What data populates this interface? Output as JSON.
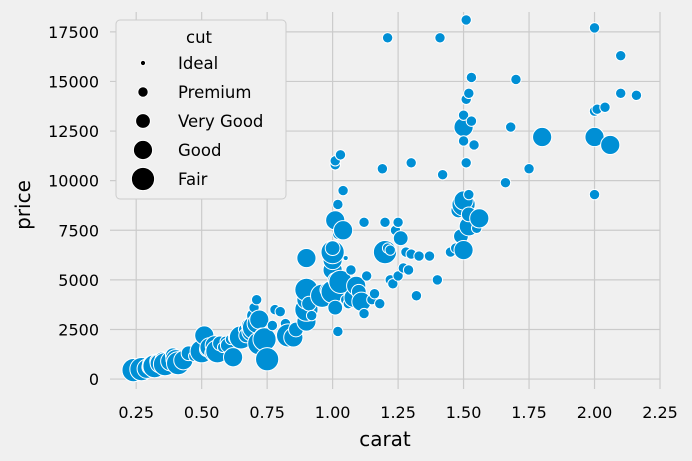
{
  "chart_data": {
    "type": "scatter",
    "title": "",
    "xlabel": "carat",
    "ylabel": "price",
    "xlim": [
      0.15,
      2.25
    ],
    "ylim": [
      -500,
      18500
    ],
    "x_ticks": [
      "0.25",
      "0.50",
      "0.75",
      "1.00",
      "1.25",
      "1.50",
      "1.75",
      "2.00",
      "2.25"
    ],
    "y_ticks": [
      "0",
      "2500",
      "5000",
      "7500",
      "10000",
      "12500",
      "15000",
      "17500"
    ],
    "grid": true,
    "marker_color": "#008fd5",
    "size_variable": "cut",
    "legend": {
      "title": "cut",
      "placement": "top-left",
      "entries": [
        "Ideal",
        "Premium",
        "Very Good",
        "Good",
        "Fair"
      ]
    },
    "points": [
      {
        "x": 0.24,
        "y": 450,
        "cut": "Fair"
      },
      {
        "x": 0.27,
        "y": 500,
        "cut": "Fair"
      },
      {
        "x": 0.29,
        "y": 520,
        "cut": "Good"
      },
      {
        "x": 0.3,
        "y": 600,
        "cut": "Very Good"
      },
      {
        "x": 0.31,
        "y": 700,
        "cut": "Good"
      },
      {
        "x": 0.32,
        "y": 650,
        "cut": "Fair"
      },
      {
        "x": 0.33,
        "y": 900,
        "cut": "Very Good"
      },
      {
        "x": 0.34,
        "y": 800,
        "cut": "Good"
      },
      {
        "x": 0.35,
        "y": 1000,
        "cut": "Very Good"
      },
      {
        "x": 0.36,
        "y": 750,
        "cut": "Fair"
      },
      {
        "x": 0.38,
        "y": 900,
        "cut": "Good"
      },
      {
        "x": 0.39,
        "y": 1200,
        "cut": "Very Good"
      },
      {
        "x": 0.4,
        "y": 1000,
        "cut": "Good"
      },
      {
        "x": 0.41,
        "y": 800,
        "cut": "Fair"
      },
      {
        "x": 0.42,
        "y": 1100,
        "cut": "Premium"
      },
      {
        "x": 0.43,
        "y": 950,
        "cut": "Good"
      },
      {
        "x": 0.45,
        "y": 1300,
        "cut": "Very Good"
      },
      {
        "x": 0.46,
        "y": 1200,
        "cut": "Ideal"
      },
      {
        "x": 0.47,
        "y": 1150,
        "cut": "Premium"
      },
      {
        "x": 0.5,
        "y": 1400,
        "cut": "Fair"
      },
      {
        "x": 0.51,
        "y": 2200,
        "cut": "Good"
      },
      {
        "x": 0.52,
        "y": 1500,
        "cut": "Very Good"
      },
      {
        "x": 0.53,
        "y": 1600,
        "cut": "Good"
      },
      {
        "x": 0.54,
        "y": 1300,
        "cut": "Very Good"
      },
      {
        "x": 0.55,
        "y": 1700,
        "cut": "Good"
      },
      {
        "x": 0.56,
        "y": 1400,
        "cut": "Fair"
      },
      {
        "x": 0.57,
        "y": 1800,
        "cut": "Very Good"
      },
      {
        "x": 0.58,
        "y": 1600,
        "cut": "Premium"
      },
      {
        "x": 0.59,
        "y": 1900,
        "cut": "Premium"
      },
      {
        "x": 0.6,
        "y": 1700,
        "cut": "Very Good"
      },
      {
        "x": 0.61,
        "y": 2000,
        "cut": "Premium"
      },
      {
        "x": 0.62,
        "y": 1100,
        "cut": "Good"
      },
      {
        "x": 0.63,
        "y": 2100,
        "cut": "Very Good"
      },
      {
        "x": 0.64,
        "y": 2300,
        "cut": "Premium"
      },
      {
        "x": 0.65,
        "y": 2100,
        "cut": "Fair"
      },
      {
        "x": 0.66,
        "y": 2500,
        "cut": "Premium"
      },
      {
        "x": 0.67,
        "y": 2200,
        "cut": "Very Good"
      },
      {
        "x": 0.68,
        "y": 2700,
        "cut": "Very Good"
      },
      {
        "x": 0.69,
        "y": 2400,
        "cut": "Good"
      },
      {
        "x": 0.7,
        "y": 2600,
        "cut": "Fair"
      },
      {
        "x": 0.7,
        "y": 3200,
        "cut": "Very Good"
      },
      {
        "x": 0.7,
        "y": 3600,
        "cut": "Premium"
      },
      {
        "x": 0.71,
        "y": 2800,
        "cut": "Good"
      },
      {
        "x": 0.71,
        "y": 4000,
        "cut": "Premium"
      },
      {
        "x": 0.72,
        "y": 3000,
        "cut": "Good"
      },
      {
        "x": 0.72,
        "y": 1800,
        "cut": "Fair"
      },
      {
        "x": 0.73,
        "y": 2200,
        "cut": "Very Good"
      },
      {
        "x": 0.74,
        "y": 2000,
        "cut": "Fair"
      },
      {
        "x": 0.75,
        "y": 1000,
        "cut": "Fair"
      },
      {
        "x": 0.77,
        "y": 2700,
        "cut": "Premium"
      },
      {
        "x": 0.78,
        "y": 3500,
        "cut": "Premium"
      },
      {
        "x": 0.8,
        "y": 3400,
        "cut": "Premium"
      },
      {
        "x": 0.82,
        "y": 2800,
        "cut": "Premium"
      },
      {
        "x": 0.83,
        "y": 2200,
        "cut": "Fair"
      },
      {
        "x": 0.85,
        "y": 2100,
        "cut": "Good"
      },
      {
        "x": 0.86,
        "y": 2500,
        "cut": "Very Good"
      },
      {
        "x": 0.88,
        "y": 3200,
        "cut": "Premium"
      },
      {
        "x": 0.9,
        "y": 2900,
        "cut": "Good"
      },
      {
        "x": 0.9,
        "y": 3500,
        "cut": "Fair"
      },
      {
        "x": 0.9,
        "y": 4000,
        "cut": "Good"
      },
      {
        "x": 0.9,
        "y": 4500,
        "cut": "Fair"
      },
      {
        "x": 0.9,
        "y": 6100,
        "cut": "Good"
      },
      {
        "x": 0.91,
        "y": 3800,
        "cut": "Very Good"
      },
      {
        "x": 0.92,
        "y": 3200,
        "cut": "Premium"
      },
      {
        "x": 0.95,
        "y": 3900,
        "cut": "Premium"
      },
      {
        "x": 0.96,
        "y": 4200,
        "cut": "Fair"
      },
      {
        "x": 0.98,
        "y": 4500,
        "cut": "Very Good"
      },
      {
        "x": 1.0,
        "y": 4400,
        "cut": "Fair"
      },
      {
        "x": 1.0,
        "y": 5500,
        "cut": "Good"
      },
      {
        "x": 1.0,
        "y": 6000,
        "cut": "Good"
      },
      {
        "x": 1.0,
        "y": 6400,
        "cut": "Fair"
      },
      {
        "x": 1.0,
        "y": 6600,
        "cut": "Very Good"
      },
      {
        "x": 1.01,
        "y": 3600,
        "cut": "Very Good"
      },
      {
        "x": 1.01,
        "y": 5000,
        "cut": "Very Good"
      },
      {
        "x": 1.01,
        "y": 8000,
        "cut": "Good"
      },
      {
        "x": 1.01,
        "y": 10800,
        "cut": "Premium"
      },
      {
        "x": 1.01,
        "y": 11000,
        "cut": "Premium"
      },
      {
        "x": 1.02,
        "y": 7300,
        "cut": "Premium"
      },
      {
        "x": 1.02,
        "y": 2400,
        "cut": "Premium"
      },
      {
        "x": 1.02,
        "y": 8800,
        "cut": "Premium"
      },
      {
        "x": 1.03,
        "y": 4900,
        "cut": "Fair"
      },
      {
        "x": 1.03,
        "y": 11300,
        "cut": "Premium"
      },
      {
        "x": 1.04,
        "y": 7500,
        "cut": "Good"
      },
      {
        "x": 1.04,
        "y": 9500,
        "cut": "Premium"
      },
      {
        "x": 1.05,
        "y": 4000,
        "cut": "Premium"
      },
      {
        "x": 1.05,
        "y": 6100,
        "cut": "Ideal"
      },
      {
        "x": 1.06,
        "y": 3800,
        "cut": "Premium"
      },
      {
        "x": 1.07,
        "y": 5500,
        "cut": "Premium"
      },
      {
        "x": 1.08,
        "y": 4100,
        "cut": "Good"
      },
      {
        "x": 1.09,
        "y": 4700,
        "cut": "Good"
      },
      {
        "x": 1.1,
        "y": 4400,
        "cut": "Very Good"
      },
      {
        "x": 1.11,
        "y": 3900,
        "cut": "Good"
      },
      {
        "x": 1.12,
        "y": 3300,
        "cut": "Premium"
      },
      {
        "x": 1.12,
        "y": 7900,
        "cut": "Premium"
      },
      {
        "x": 1.13,
        "y": 5200,
        "cut": "Premium"
      },
      {
        "x": 1.15,
        "y": 4000,
        "cut": "Premium"
      },
      {
        "x": 1.16,
        "y": 4300,
        "cut": "Premium"
      },
      {
        "x": 1.18,
        "y": 3800,
        "cut": "Premium"
      },
      {
        "x": 1.19,
        "y": 10600,
        "cut": "Premium"
      },
      {
        "x": 1.2,
        "y": 6400,
        "cut": "Fair"
      },
      {
        "x": 1.2,
        "y": 7900,
        "cut": "Premium"
      },
      {
        "x": 1.21,
        "y": 6600,
        "cut": "Premium"
      },
      {
        "x": 1.21,
        "y": 17200,
        "cut": "Premium"
      },
      {
        "x": 1.22,
        "y": 6500,
        "cut": "Premium"
      },
      {
        "x": 1.22,
        "y": 5000,
        "cut": "Premium"
      },
      {
        "x": 1.23,
        "y": 4800,
        "cut": "Premium"
      },
      {
        "x": 1.24,
        "y": 7500,
        "cut": "Premium"
      },
      {
        "x": 1.25,
        "y": 7900,
        "cut": "Premium"
      },
      {
        "x": 1.25,
        "y": 5200,
        "cut": "Premium"
      },
      {
        "x": 1.26,
        "y": 7100,
        "cut": "Very Good"
      },
      {
        "x": 1.27,
        "y": 5600,
        "cut": "Premium"
      },
      {
        "x": 1.28,
        "y": 6400,
        "cut": "Premium"
      },
      {
        "x": 1.29,
        "y": 5500,
        "cut": "Premium"
      },
      {
        "x": 1.3,
        "y": 10900,
        "cut": "Premium"
      },
      {
        "x": 1.3,
        "y": 6300,
        "cut": "Premium"
      },
      {
        "x": 1.32,
        "y": 4200,
        "cut": "Premium"
      },
      {
        "x": 1.33,
        "y": 6200,
        "cut": "Premium"
      },
      {
        "x": 1.37,
        "y": 6200,
        "cut": "Premium"
      },
      {
        "x": 1.4,
        "y": 5000,
        "cut": "Premium"
      },
      {
        "x": 1.41,
        "y": 17200,
        "cut": "Premium"
      },
      {
        "x": 1.42,
        "y": 10300,
        "cut": "Premium"
      },
      {
        "x": 1.45,
        "y": 6400,
        "cut": "Premium"
      },
      {
        "x": 1.47,
        "y": 6600,
        "cut": "Premium"
      },
      {
        "x": 1.48,
        "y": 8500,
        "cut": "Very Good"
      },
      {
        "x": 1.49,
        "y": 7200,
        "cut": "Very Good"
      },
      {
        "x": 1.5,
        "y": 6500,
        "cut": "Good"
      },
      {
        "x": 1.5,
        "y": 8800,
        "cut": "Fair"
      },
      {
        "x": 1.5,
        "y": 9000,
        "cut": "Good"
      },
      {
        "x": 1.5,
        "y": 12700,
        "cut": "Good"
      },
      {
        "x": 1.5,
        "y": 13300,
        "cut": "Premium"
      },
      {
        "x": 1.5,
        "y": 12000,
        "cut": "Premium"
      },
      {
        "x": 1.51,
        "y": 14100,
        "cut": "Premium"
      },
      {
        "x": 1.51,
        "y": 18100,
        "cut": "Premium"
      },
      {
        "x": 1.51,
        "y": 10900,
        "cut": "Premium"
      },
      {
        "x": 1.52,
        "y": 7700,
        "cut": "Good"
      },
      {
        "x": 1.52,
        "y": 8300,
        "cut": "Very Good"
      },
      {
        "x": 1.52,
        "y": 9300,
        "cut": "Premium"
      },
      {
        "x": 1.52,
        "y": 14400,
        "cut": "Premium"
      },
      {
        "x": 1.53,
        "y": 15200,
        "cut": "Premium"
      },
      {
        "x": 1.53,
        "y": 13000,
        "cut": "Premium"
      },
      {
        "x": 1.54,
        "y": 11800,
        "cut": "Premium"
      },
      {
        "x": 1.55,
        "y": 7600,
        "cut": "Premium"
      },
      {
        "x": 1.56,
        "y": 8100,
        "cut": "Good"
      },
      {
        "x": 1.66,
        "y": 9900,
        "cut": "Premium"
      },
      {
        "x": 1.68,
        "y": 12700,
        "cut": "Premium"
      },
      {
        "x": 1.7,
        "y": 15100,
        "cut": "Premium"
      },
      {
        "x": 1.75,
        "y": 10600,
        "cut": "Premium"
      },
      {
        "x": 1.8,
        "y": 12200,
        "cut": "Good"
      },
      {
        "x": 2.0,
        "y": 9300,
        "cut": "Premium"
      },
      {
        "x": 2.0,
        "y": 12200,
        "cut": "Good"
      },
      {
        "x": 2.0,
        "y": 13500,
        "cut": "Premium"
      },
      {
        "x": 2.0,
        "y": 17700,
        "cut": "Premium"
      },
      {
        "x": 2.01,
        "y": 13600,
        "cut": "Premium"
      },
      {
        "x": 2.04,
        "y": 13700,
        "cut": "Premium"
      },
      {
        "x": 2.06,
        "y": 11800,
        "cut": "Good"
      },
      {
        "x": 2.1,
        "y": 16300,
        "cut": "Premium"
      },
      {
        "x": 2.1,
        "y": 14400,
        "cut": "Premium"
      },
      {
        "x": 2.16,
        "y": 14300,
        "cut": "Premium"
      }
    ]
  }
}
